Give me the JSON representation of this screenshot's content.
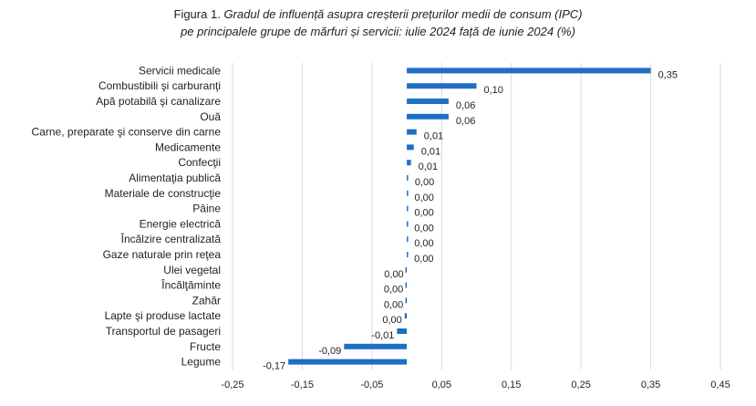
{
  "chart_data": {
    "type": "bar",
    "orientation": "horizontal",
    "title_prefix": "Figura 1.",
    "title": "Gradul de influență asupra creșterii prețurilor medii de consum (IPC)",
    "subtitle": "pe principalele grupe de mărfuri și servicii: iulie 2024 față de iunie 2024 (%)",
    "xlabel": "",
    "ylabel": "",
    "xlim": [
      -0.25,
      0.45
    ],
    "xticks": [
      -0.25,
      -0.15,
      -0.05,
      0.05,
      0.15,
      0.25,
      0.35,
      0.45
    ],
    "xtick_labels": [
      "-0,25",
      "-0,15",
      "-0,05",
      "0,05",
      "0,15",
      "0,25",
      "0,35",
      "0,45"
    ],
    "grid": true,
    "legend": "none",
    "bar_color": "#1f6fc5",
    "categories": [
      "Servicii medicale",
      "Combustibili şi carburanţi",
      "Apă potabilă şi canalizare",
      "Ouă",
      "Carne, preparate şi conserve din carne",
      "Medicamente",
      "Confecţii",
      "Alimentaţia publică",
      "Materiale de construcţie",
      "Pâine",
      "Energie electrică",
      "Încălzire centralizată",
      "Gaze naturale prin reţea",
      "Ulei vegetal",
      "Încălţăminte",
      "Zahăr",
      "Lapte şi produse lactate",
      "Transportul de pasageri",
      "Fructe",
      "Legume"
    ],
    "values": [
      0.35,
      0.1,
      0.06,
      0.06,
      0.014,
      0.01,
      0.006,
      0.001,
      0.0005,
      0.0004,
      0.0003,
      0.0002,
      0.0001,
      -0.0005,
      -0.001,
      -0.001,
      -0.003,
      -0.014,
      -0.09,
      -0.17
    ],
    "value_labels": [
      "0,35",
      "0,10",
      "0,06",
      "0,06",
      "0,01",
      "0,01",
      "0,01",
      "0,00",
      "0,00",
      "0,00",
      "0,00",
      "0,00",
      "0,00",
      "0,00",
      "0,00",
      "0,00",
      "0,00",
      "-0,01",
      "-0,09",
      "-0,17"
    ]
  }
}
